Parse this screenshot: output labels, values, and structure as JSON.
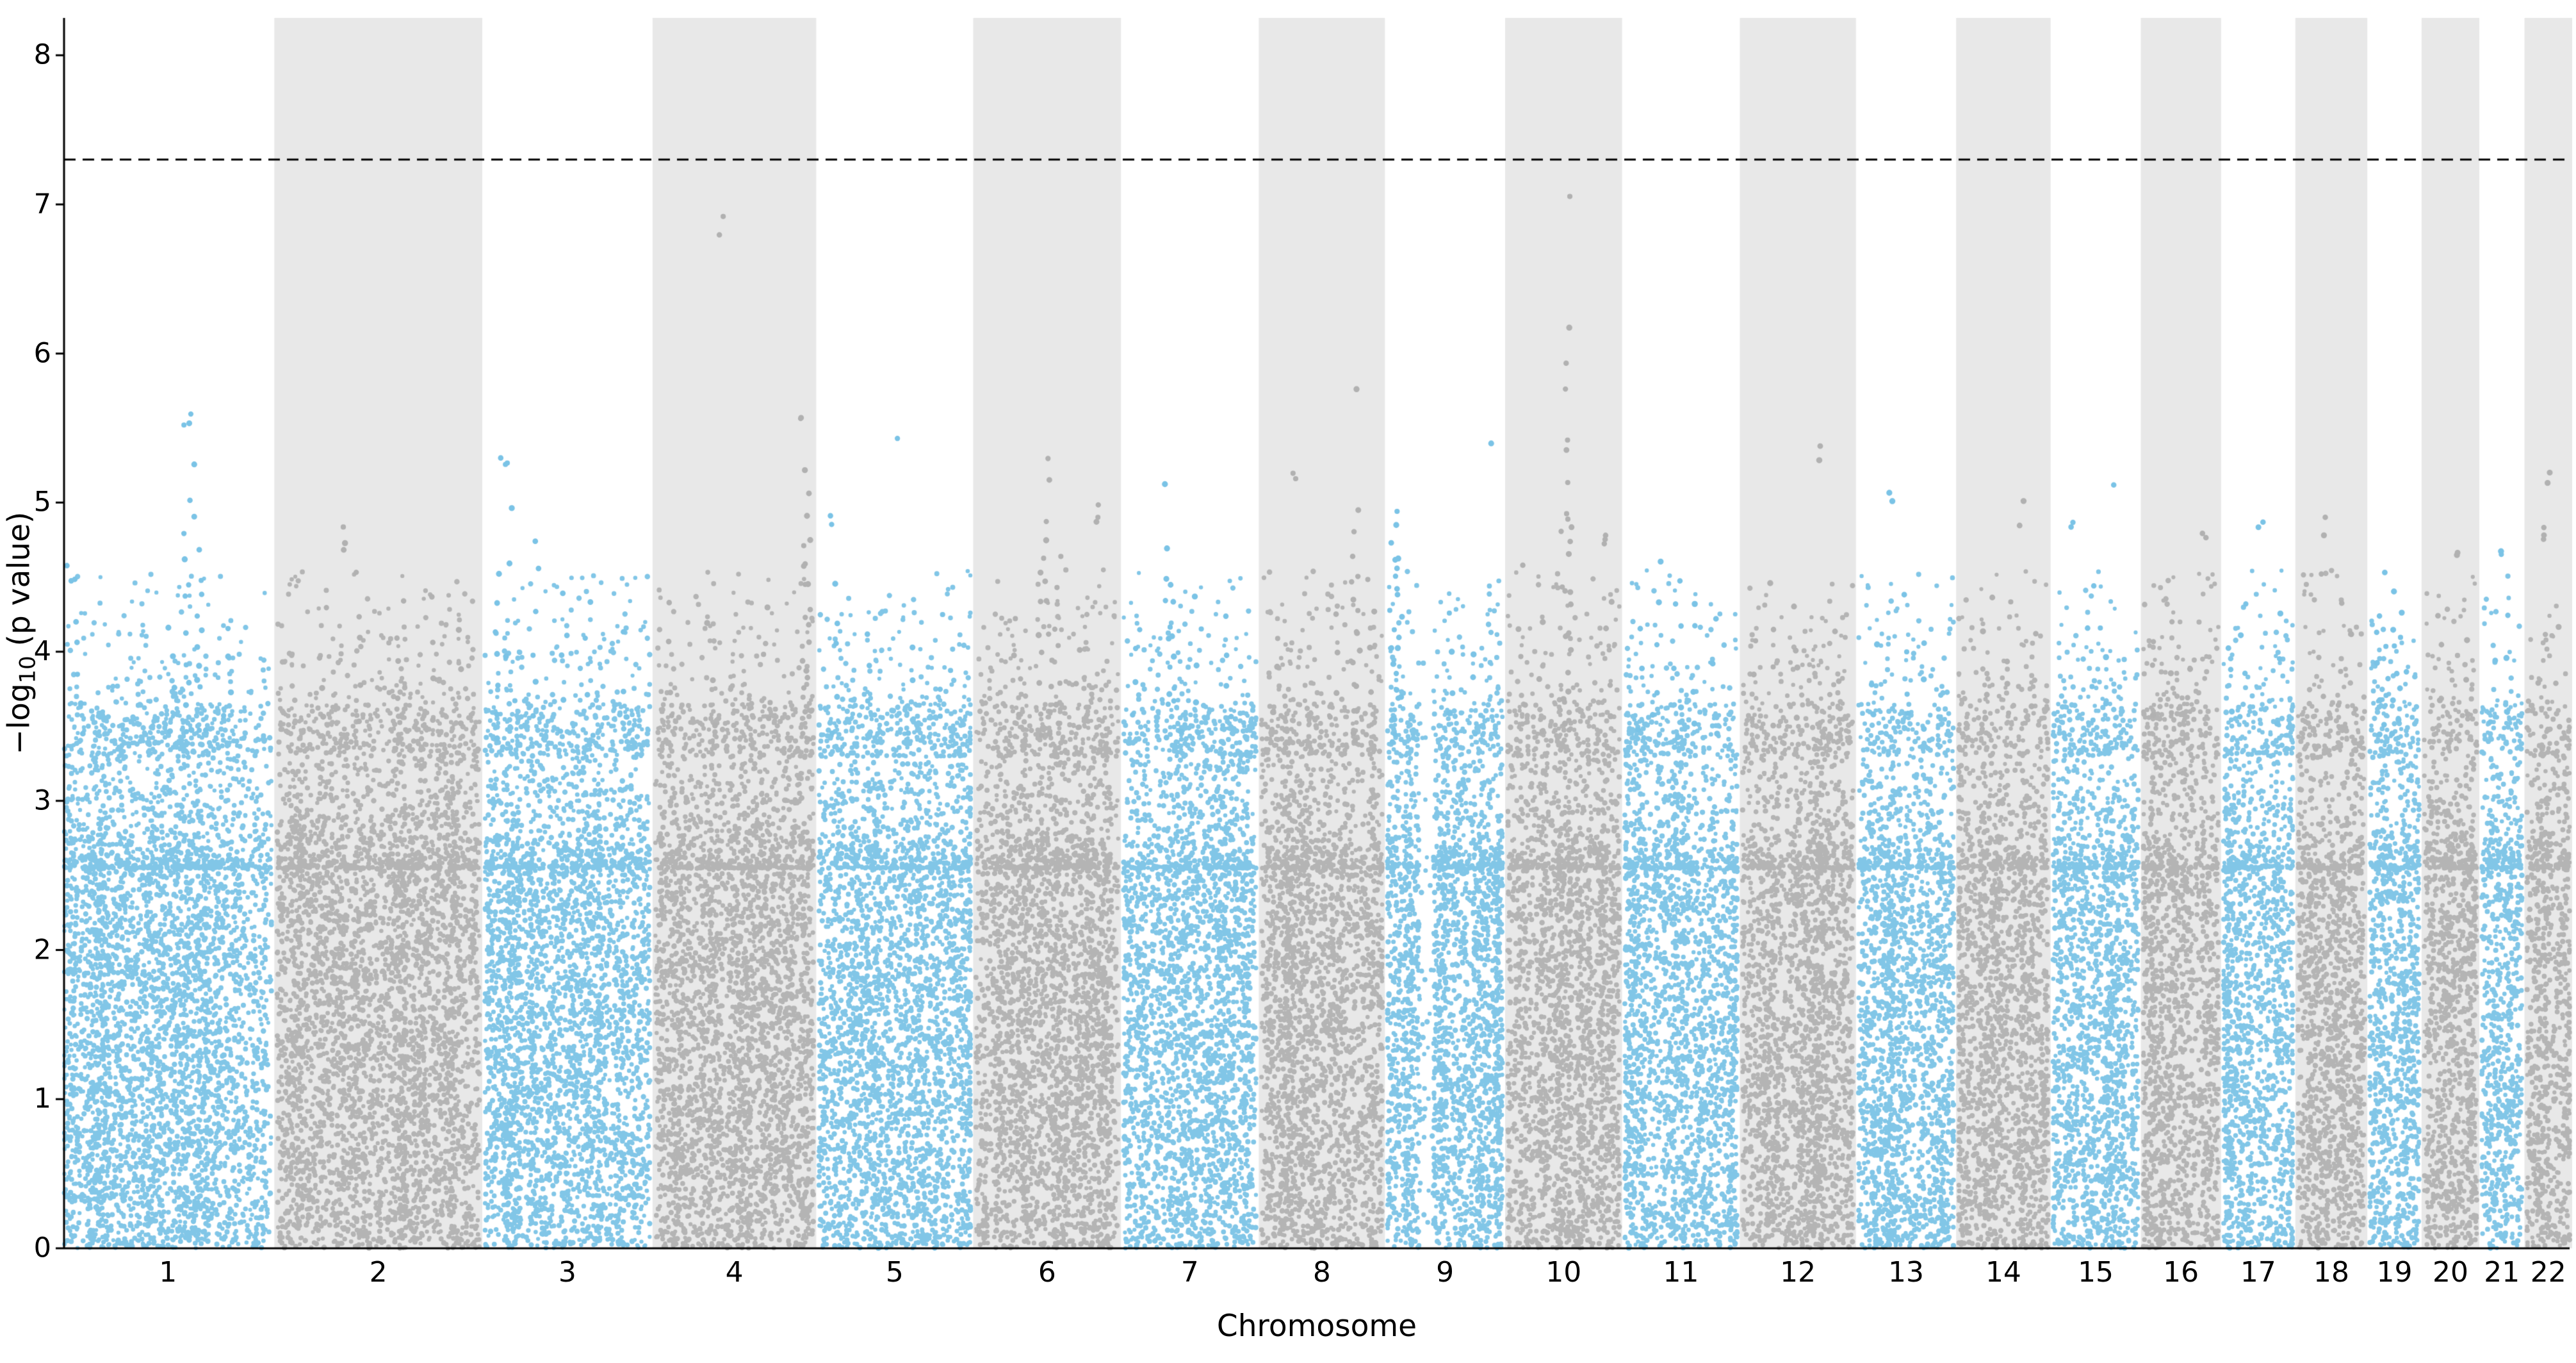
{
  "chart_data": {
    "type": "scatter",
    "subtype": "manhattan",
    "title": "",
    "xlabel": "Chromosome",
    "ylabel": {
      "prefix": "−log",
      "sub": "10",
      "suffix": " (p value)"
    },
    "ylim": [
      0,
      8.25
    ],
    "yticks": [
      "0",
      "1",
      "2",
      "3",
      "4",
      "5",
      "6",
      "7",
      "8"
    ],
    "threshold": {
      "value": 7.3,
      "style": "dashed",
      "color": "#000000"
    },
    "colors": {
      "odd_chrom_points": "#7ac3e6",
      "even_chrom_points": "#b1b1b1",
      "band": "#e8e8e8",
      "axis": "#000000",
      "background": "#ffffff"
    },
    "legend": null,
    "grid": false,
    "seed": 1337,
    "points_per_mb": 18,
    "chromosomes": [
      {
        "label": "1",
        "len": 249,
        "peaks": [
          {
            "x": 0.6,
            "h": 5.62,
            "n": 3,
            "m": "t"
          },
          {
            "x": 0.615,
            "h": 5.3,
            "n": 6
          },
          {
            "x": 0.64,
            "h": 5.1,
            "n": 6
          },
          {
            "x": 0.585,
            "h": 4.9,
            "n": 7
          },
          {
            "x": 0.66,
            "h": 4.55,
            "n": 5
          },
          {
            "x": 0.03,
            "h": 4.62,
            "n": 3,
            "m": "t"
          },
          {
            "x": 0.07,
            "h": 4.3,
            "n": 5
          },
          {
            "x": 0.52,
            "h": 4.3,
            "n": 4
          },
          {
            "x": 0.8,
            "h": 4.25,
            "n": 4
          }
        ]
      },
      {
        "label": "2",
        "len": 243,
        "peaks": [
          {
            "x": 0.33,
            "h": 4.85,
            "n": 3,
            "m": "t"
          },
          {
            "x": 0.41,
            "h": 4.65,
            "n": 5
          },
          {
            "x": 0.23,
            "h": 4.4,
            "n": 4
          },
          {
            "x": 0.6,
            "h": 4.35,
            "n": 5
          },
          {
            "x": 0.76,
            "h": 4.45,
            "n": 4
          },
          {
            "x": 0.9,
            "h": 4.25,
            "n": 3
          }
        ]
      },
      {
        "label": "3",
        "len": 198,
        "peaks": [
          {
            "x": 0.13,
            "h": 5.32,
            "n": 3,
            "m": "t"
          },
          {
            "x": 0.155,
            "h": 5.05,
            "n": 4
          },
          {
            "x": 0.3,
            "h": 4.9,
            "n": 6
          },
          {
            "x": 0.08,
            "h": 4.55,
            "n": 7
          },
          {
            "x": 0.47,
            "h": 4.5,
            "n": 5
          },
          {
            "x": 0.62,
            "h": 4.35,
            "n": 4
          },
          {
            "x": 0.83,
            "h": 4.2,
            "n": 3
          }
        ]
      },
      {
        "label": "4",
        "len": 190,
        "peaks": [
          {
            "x": 0.44,
            "h": 6.93,
            "n": 2,
            "m": "t"
          },
          {
            "x": 0.93,
            "h": 5.62,
            "n": 2,
            "m": "t"
          },
          {
            "x": 0.945,
            "h": 5.25,
            "n": 12
          },
          {
            "x": 0.96,
            "h": 4.85,
            "n": 9
          },
          {
            "x": 0.1,
            "h": 4.35,
            "n": 4
          },
          {
            "x": 0.35,
            "h": 4.25,
            "n": 3
          },
          {
            "x": 0.7,
            "h": 4.3,
            "n": 4
          }
        ]
      },
      {
        "label": "5",
        "len": 182,
        "peaks": [
          {
            "x": 0.55,
            "h": 5.52,
            "n": 1,
            "m": "t"
          },
          {
            "x": 0.09,
            "h": 4.92,
            "n": 2,
            "m": "t"
          },
          {
            "x": 0.11,
            "h": 4.62,
            "n": 5
          },
          {
            "x": 0.33,
            "h": 4.35,
            "n": 3
          },
          {
            "x": 0.6,
            "h": 4.2,
            "n": 3
          },
          {
            "x": 0.82,
            "h": 4.25,
            "n": 4
          }
        ]
      },
      {
        "label": "6",
        "len": 171,
        "peaks": [
          {
            "x": 0.5,
            "h": 5.3,
            "n": 2,
            "m": "t"
          },
          {
            "x": 0.52,
            "h": 4.95,
            "n": 9
          },
          {
            "x": 0.46,
            "h": 4.7,
            "n": 8
          },
          {
            "x": 0.57,
            "h": 4.65,
            "n": 7
          },
          {
            "x": 0.85,
            "h": 5.05,
            "n": 3,
            "m": "t"
          },
          {
            "x": 0.28,
            "h": 4.3,
            "n": 4
          },
          {
            "x": 0.7,
            "h": 4.2,
            "n": 3
          }
        ]
      },
      {
        "label": "7",
        "len": 159,
        "peaks": [
          {
            "x": 0.3,
            "h": 5.2,
            "n": 1,
            "m": "t"
          },
          {
            "x": 0.33,
            "h": 4.7,
            "n": 9
          },
          {
            "x": 0.37,
            "h": 4.5,
            "n": 7
          },
          {
            "x": 0.1,
            "h": 4.3,
            "n": 4
          },
          {
            "x": 0.55,
            "h": 4.4,
            "n": 5
          },
          {
            "x": 0.78,
            "h": 4.25,
            "n": 4
          }
        ]
      },
      {
        "label": "8",
        "len": 145,
        "peaks": [
          {
            "x": 0.78,
            "h": 5.88,
            "n": 1,
            "m": "t"
          },
          {
            "x": 0.29,
            "h": 5.25,
            "n": 2,
            "m": "t"
          },
          {
            "x": 0.775,
            "h": 5.05,
            "n": 10
          },
          {
            "x": 0.79,
            "h": 4.6,
            "n": 7
          },
          {
            "x": 0.6,
            "h": 4.3,
            "n": 4
          },
          {
            "x": 0.9,
            "h": 4.5,
            "n": 5
          },
          {
            "x": 0.13,
            "h": 4.2,
            "n": 3
          }
        ]
      },
      {
        "label": "9",
        "len": 138,
        "peaks": [
          {
            "x": 0.06,
            "h": 5.02,
            "n": 14
          },
          {
            "x": 0.085,
            "h": 4.7,
            "n": 10
          },
          {
            "x": 0.95,
            "h": 5.45,
            "n": 1,
            "m": "t"
          },
          {
            "x": 0.55,
            "h": 4.3,
            "n": 4
          },
          {
            "x": 0.75,
            "h": 4.1,
            "n": 3
          }
        ]
      },
      {
        "label": "10",
        "len": 134,
        "peaks": [
          {
            "x": 0.53,
            "h": 7.18,
            "n": 1,
            "m": "t"
          },
          {
            "x": 0.532,
            "h": 6.65,
            "n": 4
          },
          {
            "x": 0.528,
            "h": 6.0,
            "n": 6
          },
          {
            "x": 0.535,
            "h": 5.45,
            "n": 9
          },
          {
            "x": 0.52,
            "h": 4.9,
            "n": 8
          },
          {
            "x": 0.14,
            "h": 4.6,
            "n": 4
          },
          {
            "x": 0.86,
            "h": 4.9,
            "n": 3,
            "m": "t"
          },
          {
            "x": 0.9,
            "h": 4.45,
            "n": 4
          },
          {
            "x": 0.3,
            "h": 4.3,
            "n": 3
          }
        ]
      },
      {
        "label": "11",
        "len": 135,
        "peaks": [
          {
            "x": 0.28,
            "h": 4.7,
            "n": 5
          },
          {
            "x": 0.48,
            "h": 4.6,
            "n": 6
          },
          {
            "x": 0.63,
            "h": 4.45,
            "n": 4
          },
          {
            "x": 0.13,
            "h": 4.35,
            "n": 3
          },
          {
            "x": 0.83,
            "h": 4.25,
            "n": 3
          }
        ]
      },
      {
        "label": "12",
        "len": 133,
        "peaks": [
          {
            "x": 0.72,
            "h": 5.38,
            "n": 2,
            "m": "t"
          },
          {
            "x": 0.28,
            "h": 4.6,
            "n": 4
          },
          {
            "x": 0.48,
            "h": 4.45,
            "n": 4
          },
          {
            "x": 0.86,
            "h": 4.3,
            "n": 3
          },
          {
            "x": 0.1,
            "h": 4.25,
            "n": 3
          }
        ]
      },
      {
        "label": "13",
        "len": 114,
        "peaks": [
          {
            "x": 0.35,
            "h": 5.15,
            "n": 2,
            "m": "t"
          },
          {
            "x": 0.5,
            "h": 4.4,
            "n": 4
          },
          {
            "x": 0.68,
            "h": 4.25,
            "n": 3
          },
          {
            "x": 0.15,
            "h": 4.1,
            "n": 3
          }
        ]
      },
      {
        "label": "14",
        "len": 107,
        "peaks": [
          {
            "x": 0.72,
            "h": 5.02,
            "n": 2,
            "m": "t"
          },
          {
            "x": 0.33,
            "h": 4.45,
            "n": 4
          },
          {
            "x": 0.55,
            "h": 4.35,
            "n": 4
          },
          {
            "x": 0.85,
            "h": 4.15,
            "n": 2
          }
        ]
      },
      {
        "label": "15",
        "len": 102,
        "peaks": [
          {
            "x": 0.73,
            "h": 5.25,
            "n": 1,
            "m": "t"
          },
          {
            "x": 0.24,
            "h": 4.95,
            "n": 2,
            "m": "t"
          },
          {
            "x": 0.45,
            "h": 4.45,
            "n": 4
          },
          {
            "x": 0.62,
            "h": 4.3,
            "n": 3
          }
        ]
      },
      {
        "label": "16",
        "len": 90,
        "peaks": [
          {
            "x": 0.85,
            "h": 4.88,
            "n": 2,
            "m": "t"
          },
          {
            "x": 0.4,
            "h": 4.35,
            "n": 3
          },
          {
            "x": 0.14,
            "h": 4.25,
            "n": 3
          },
          {
            "x": 0.62,
            "h": 4.1,
            "n": 2
          }
        ]
      },
      {
        "label": "17",
        "len": 83,
        "peaks": [
          {
            "x": 0.55,
            "h": 4.92,
            "n": 2,
            "m": "t"
          },
          {
            "x": 0.3,
            "h": 4.45,
            "n": 4
          },
          {
            "x": 0.8,
            "h": 4.3,
            "n": 3
          },
          {
            "x": 0.1,
            "h": 4.2,
            "n": 3
          }
        ]
      },
      {
        "label": "18",
        "len": 80,
        "peaks": [
          {
            "x": 0.44,
            "h": 4.95,
            "n": 2,
            "m": "t"
          },
          {
            "x": 0.34,
            "h": 4.65,
            "n": 3
          },
          {
            "x": 0.6,
            "h": 4.35,
            "n": 3
          },
          {
            "x": 0.8,
            "h": 4.15,
            "n": 2
          }
        ]
      },
      {
        "label": "19",
        "len": 59,
        "peaks": [
          {
            "x": 0.3,
            "h": 4.55,
            "n": 6
          },
          {
            "x": 0.5,
            "h": 4.45,
            "n": 6
          },
          {
            "x": 0.7,
            "h": 4.4,
            "n": 5
          },
          {
            "x": 0.14,
            "h": 4.25,
            "n": 4
          }
        ]
      },
      {
        "label": "20",
        "len": 63,
        "peaks": [
          {
            "x": 0.6,
            "h": 4.75,
            "n": 2,
            "m": "t"
          },
          {
            "x": 0.3,
            "h": 4.4,
            "n": 3
          },
          {
            "x": 0.8,
            "h": 4.2,
            "n": 3
          }
        ]
      },
      {
        "label": "21",
        "len": 48,
        "peaks": [
          {
            "x": 0.45,
            "h": 4.8,
            "n": 2,
            "m": "t"
          },
          {
            "x": 0.62,
            "h": 4.35,
            "n": 3
          },
          {
            "x": 0.25,
            "h": 4.1,
            "n": 2
          }
        ]
      },
      {
        "label": "22",
        "len": 51,
        "peaks": [
          {
            "x": 0.55,
            "h": 5.3,
            "n": 2,
            "m": "t"
          },
          {
            "x": 0.4,
            "h": 4.9,
            "n": 3,
            "m": "t"
          },
          {
            "x": 0.68,
            "h": 4.25,
            "n": 3
          },
          {
            "x": 0.25,
            "h": 4.0,
            "n": 2
          }
        ]
      }
    ],
    "gaps": {
      "9": [
        0.28,
        0.4
      ]
    }
  }
}
